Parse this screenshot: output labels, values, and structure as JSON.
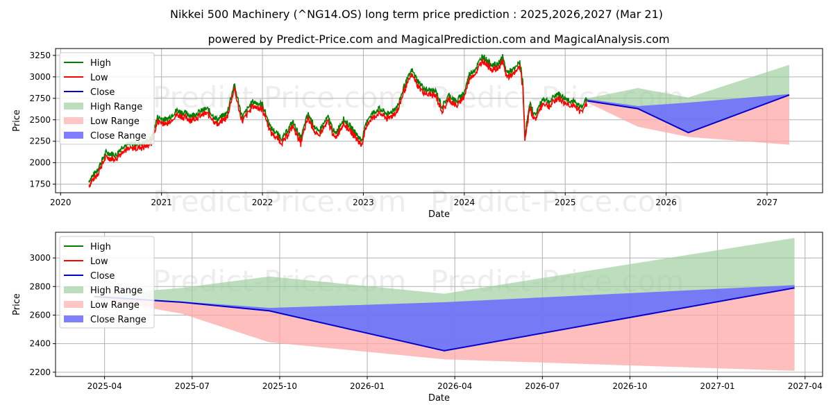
{
  "title": "Nikkei 500 Machinery (^NG14.OS) long term price prediction : 2025,2026,2027 (Mar 21)",
  "subtitle": "powered by Predict-Price.com and MagicalPrediction.com and MagicalAnalysis.com",
  "watermark": "Predict-Price.com",
  "colors": {
    "high": "#008000",
    "low": "#ff0000",
    "close": "#0000cc",
    "high_range": "#9acd9a",
    "low_range": "#ffa8a8",
    "close_range": "#6a6aff",
    "grid": "#b0b0b0"
  },
  "legend": [
    "High",
    "Low",
    "Close",
    "High Range",
    "Low Range",
    "Close Range"
  ],
  "chart_data": [
    {
      "type": "line",
      "name": "top",
      "xlabel": "Date",
      "ylabel": "Price",
      "xlim": [
        2019.95,
        2027.55
      ],
      "ylim": [
        1650,
        3330
      ],
      "xticks": [
        2020,
        2021,
        2022,
        2023,
        2024,
        2025,
        2026,
        2027
      ],
      "xtick_labels": [
        "2020",
        "2021",
        "2022",
        "2023",
        "2024",
        "2025",
        "2026",
        "2027"
      ],
      "yticks": [
        1750,
        2000,
        2250,
        2500,
        2750,
        3000,
        3250
      ],
      "history_anchors": [
        [
          2020.28,
          1760
        ],
        [
          2020.36,
          1880
        ],
        [
          2020.45,
          2090
        ],
        [
          2020.55,
          2060
        ],
        [
          2020.62,
          2170
        ],
        [
          2020.72,
          2190
        ],
        [
          2020.82,
          2200
        ],
        [
          2020.9,
          2250
        ],
        [
          2020.96,
          2500
        ],
        [
          2021.05,
          2470
        ],
        [
          2021.15,
          2580
        ],
        [
          2021.3,
          2520
        ],
        [
          2021.45,
          2600
        ],
        [
          2021.55,
          2470
        ],
        [
          2021.65,
          2550
        ],
        [
          2021.72,
          2880
        ],
        [
          2021.8,
          2500
        ],
        [
          2021.9,
          2680
        ],
        [
          2022.0,
          2650
        ],
        [
          2022.08,
          2380
        ],
        [
          2022.2,
          2250
        ],
        [
          2022.3,
          2450
        ],
        [
          2022.38,
          2250
        ],
        [
          2022.45,
          2540
        ],
        [
          2022.55,
          2320
        ],
        [
          2022.65,
          2500
        ],
        [
          2022.72,
          2300
        ],
        [
          2022.8,
          2480
        ],
        [
          2022.88,
          2380
        ],
        [
          2022.98,
          2230
        ],
        [
          2023.05,
          2500
        ],
        [
          2023.15,
          2600
        ],
        [
          2023.25,
          2530
        ],
        [
          2023.35,
          2650
        ],
        [
          2023.4,
          2850
        ],
        [
          2023.48,
          3050
        ],
        [
          2023.55,
          2900
        ],
        [
          2023.62,
          2820
        ],
        [
          2023.72,
          2800
        ],
        [
          2023.78,
          2620
        ],
        [
          2023.85,
          2760
        ],
        [
          2023.92,
          2680
        ],
        [
          2024.0,
          2790
        ],
        [
          2024.05,
          3000
        ],
        [
          2024.12,
          3080
        ],
        [
          2024.18,
          3220
        ],
        [
          2024.25,
          3130
        ],
        [
          2024.32,
          3100
        ],
        [
          2024.38,
          3200
        ],
        [
          2024.42,
          3020
        ],
        [
          2024.5,
          3060
        ],
        [
          2024.55,
          3150
        ],
        [
          2024.58,
          2900
        ],
        [
          2024.6,
          2300
        ],
        [
          2024.65,
          2650
        ],
        [
          2024.7,
          2520
        ],
        [
          2024.78,
          2720
        ],
        [
          2024.85,
          2680
        ],
        [
          2024.92,
          2780
        ],
        [
          2025.0,
          2720
        ],
        [
          2025.08,
          2680
        ],
        [
          2025.15,
          2620
        ],
        [
          2025.22,
          2720
        ]
      ],
      "prediction": {
        "x": [
          2025.22,
          2025.72,
          2026.22,
          2027.22
        ],
        "high": [
          2750,
          2870,
          2760,
          3140
        ],
        "low": [
          2700,
          2420,
          2300,
          2210
        ],
        "close": [
          2720,
          2630,
          2350,
          2790
        ],
        "close_range_top": [
          2740,
          2660,
          2700,
          2800
        ]
      }
    },
    {
      "type": "line",
      "name": "bottom",
      "xlabel": "Date",
      "ylabel": "Price",
      "xlim": [
        2025.11,
        2027.3
      ],
      "ylim": [
        2170,
        3180
      ],
      "xticks": [
        2025.25,
        2025.5,
        2025.75,
        2026.0,
        2026.25,
        2026.5,
        2026.75,
        2027.0,
        2027.25
      ],
      "xtick_labels": [
        "2025-04",
        "2025-07",
        "2025-10",
        "2026-01",
        "2026-04",
        "2026-07",
        "2026-10",
        "2027-01",
        "2027-04"
      ],
      "yticks": [
        2200,
        2400,
        2600,
        2800,
        3000
      ],
      "series": {
        "x": [
          2025.22,
          2025.47,
          2025.72,
          2026.22,
          2027.22
        ],
        "high": [
          2740,
          2790,
          2870,
          2750,
          3140
        ],
        "low": [
          2720,
          2610,
          2410,
          2290,
          2210
        ],
        "close": [
          2730,
          2690,
          2630,
          2350,
          2790
        ],
        "close_range_top": [
          2735,
          2695,
          2650,
          2690,
          2810
        ]
      }
    }
  ]
}
